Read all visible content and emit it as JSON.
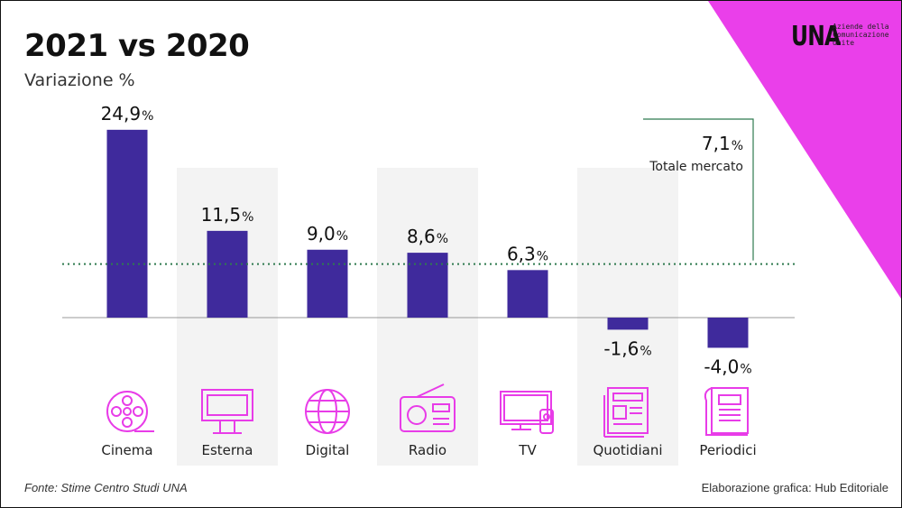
{
  "header": {
    "title": "2021 vs 2020",
    "subtitle": "Variazione %"
  },
  "logo": {
    "mark": "UNA",
    "text": "Aziende della Comunicazione Unite"
  },
  "colors": {
    "bar": "#3f2a9c",
    "accent": "#ea3fea",
    "reference": "#2f7a4f",
    "panel": "#f3f3f3",
    "baseline": "#999999"
  },
  "chart_data": {
    "type": "bar",
    "title": "2021 vs 2020",
    "ylabel": "Variazione %",
    "categories": [
      "Cinema",
      "Esterna",
      "Digital",
      "Radio",
      "TV",
      "Quotidiani",
      "Periodici"
    ],
    "values": [
      24.9,
      11.5,
      9.0,
      8.6,
      6.3,
      -1.6,
      -4.0
    ],
    "value_labels": [
      "24,9",
      "11,5",
      "9,0",
      "8,6",
      "6,3",
      "-1,6",
      "-4,0"
    ],
    "unit": "%",
    "icons": [
      "film-reel-icon",
      "billboard-icon",
      "globe-icon",
      "radio-icon",
      "tv-icon",
      "newspaper-icon",
      "magazine-icon"
    ],
    "ylim": [
      -5,
      26
    ],
    "reference": {
      "value": 7.1,
      "value_label": "7,1",
      "unit": "%",
      "label": "Totale mercato"
    }
  },
  "footer": {
    "source": "Fonte: Stime Centro Studi UNA",
    "credit": "Elaborazione grafica: Hub Editoriale"
  }
}
